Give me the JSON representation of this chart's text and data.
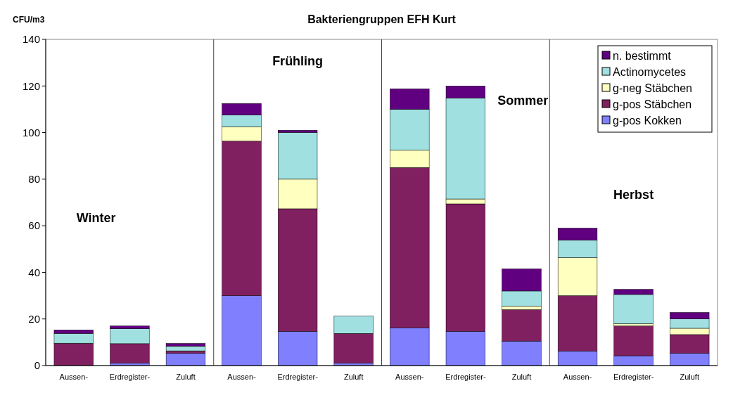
{
  "chart_data": {
    "type": "bar",
    "title": "Bakteriengruppen EFH Kurt",
    "ylabel": "CFU/m3",
    "stacked": true,
    "categories": [
      "Aussen-",
      "Erdregister-",
      "Zuluft",
      "Aussen-",
      "Erdregister-",
      "Zuluft",
      "Aussen-",
      "Erdregister-",
      "Zuluft",
      "Aussen-",
      "Erdregister-",
      "Zuluft"
    ],
    "series": [
      {
        "name": "g-pos Kokken",
        "color": "#8080ff",
        "values": [
          0,
          1,
          5.2,
          30,
          14.7,
          1,
          16.2,
          14.7,
          10.5,
          6.2,
          4.2,
          5.3
        ]
      },
      {
        "name": "g-pos Stäbchen",
        "color": "#802060",
        "values": [
          9.6,
          8.4,
          1.1,
          66.3,
          52.6,
          12.8,
          68.8,
          54.7,
          13.5,
          23.8,
          12.8,
          8
        ]
      },
      {
        "name": "g-neg Stäbchen",
        "color": "#ffffc0",
        "values": [
          0,
          0,
          0,
          6.2,
          12.7,
          0,
          7.5,
          2.1,
          1.5,
          16.3,
          1,
          2.7
        ]
      },
      {
        "name": "Actinomycetes",
        "color": "#a0e0e0",
        "values": [
          4.2,
          6.4,
          2,
          5,
          20,
          7.4,
          17.5,
          43.3,
          6.5,
          7.5,
          12.5,
          4
        ]
      },
      {
        "name": "n. bestimmt",
        "color": "#600080",
        "values": [
          1.5,
          1.2,
          1.2,
          5,
          1,
          0,
          8.8,
          5.2,
          9.5,
          5.2,
          2.2,
          2.8
        ]
      }
    ],
    "ylim": [
      0,
      140
    ],
    "yticks": [
      0,
      20,
      40,
      60,
      80,
      100,
      120,
      140
    ],
    "annotations": [
      "Winter",
      "Frühling",
      "Sommer",
      "Herbst"
    ],
    "legend": "top right"
  }
}
